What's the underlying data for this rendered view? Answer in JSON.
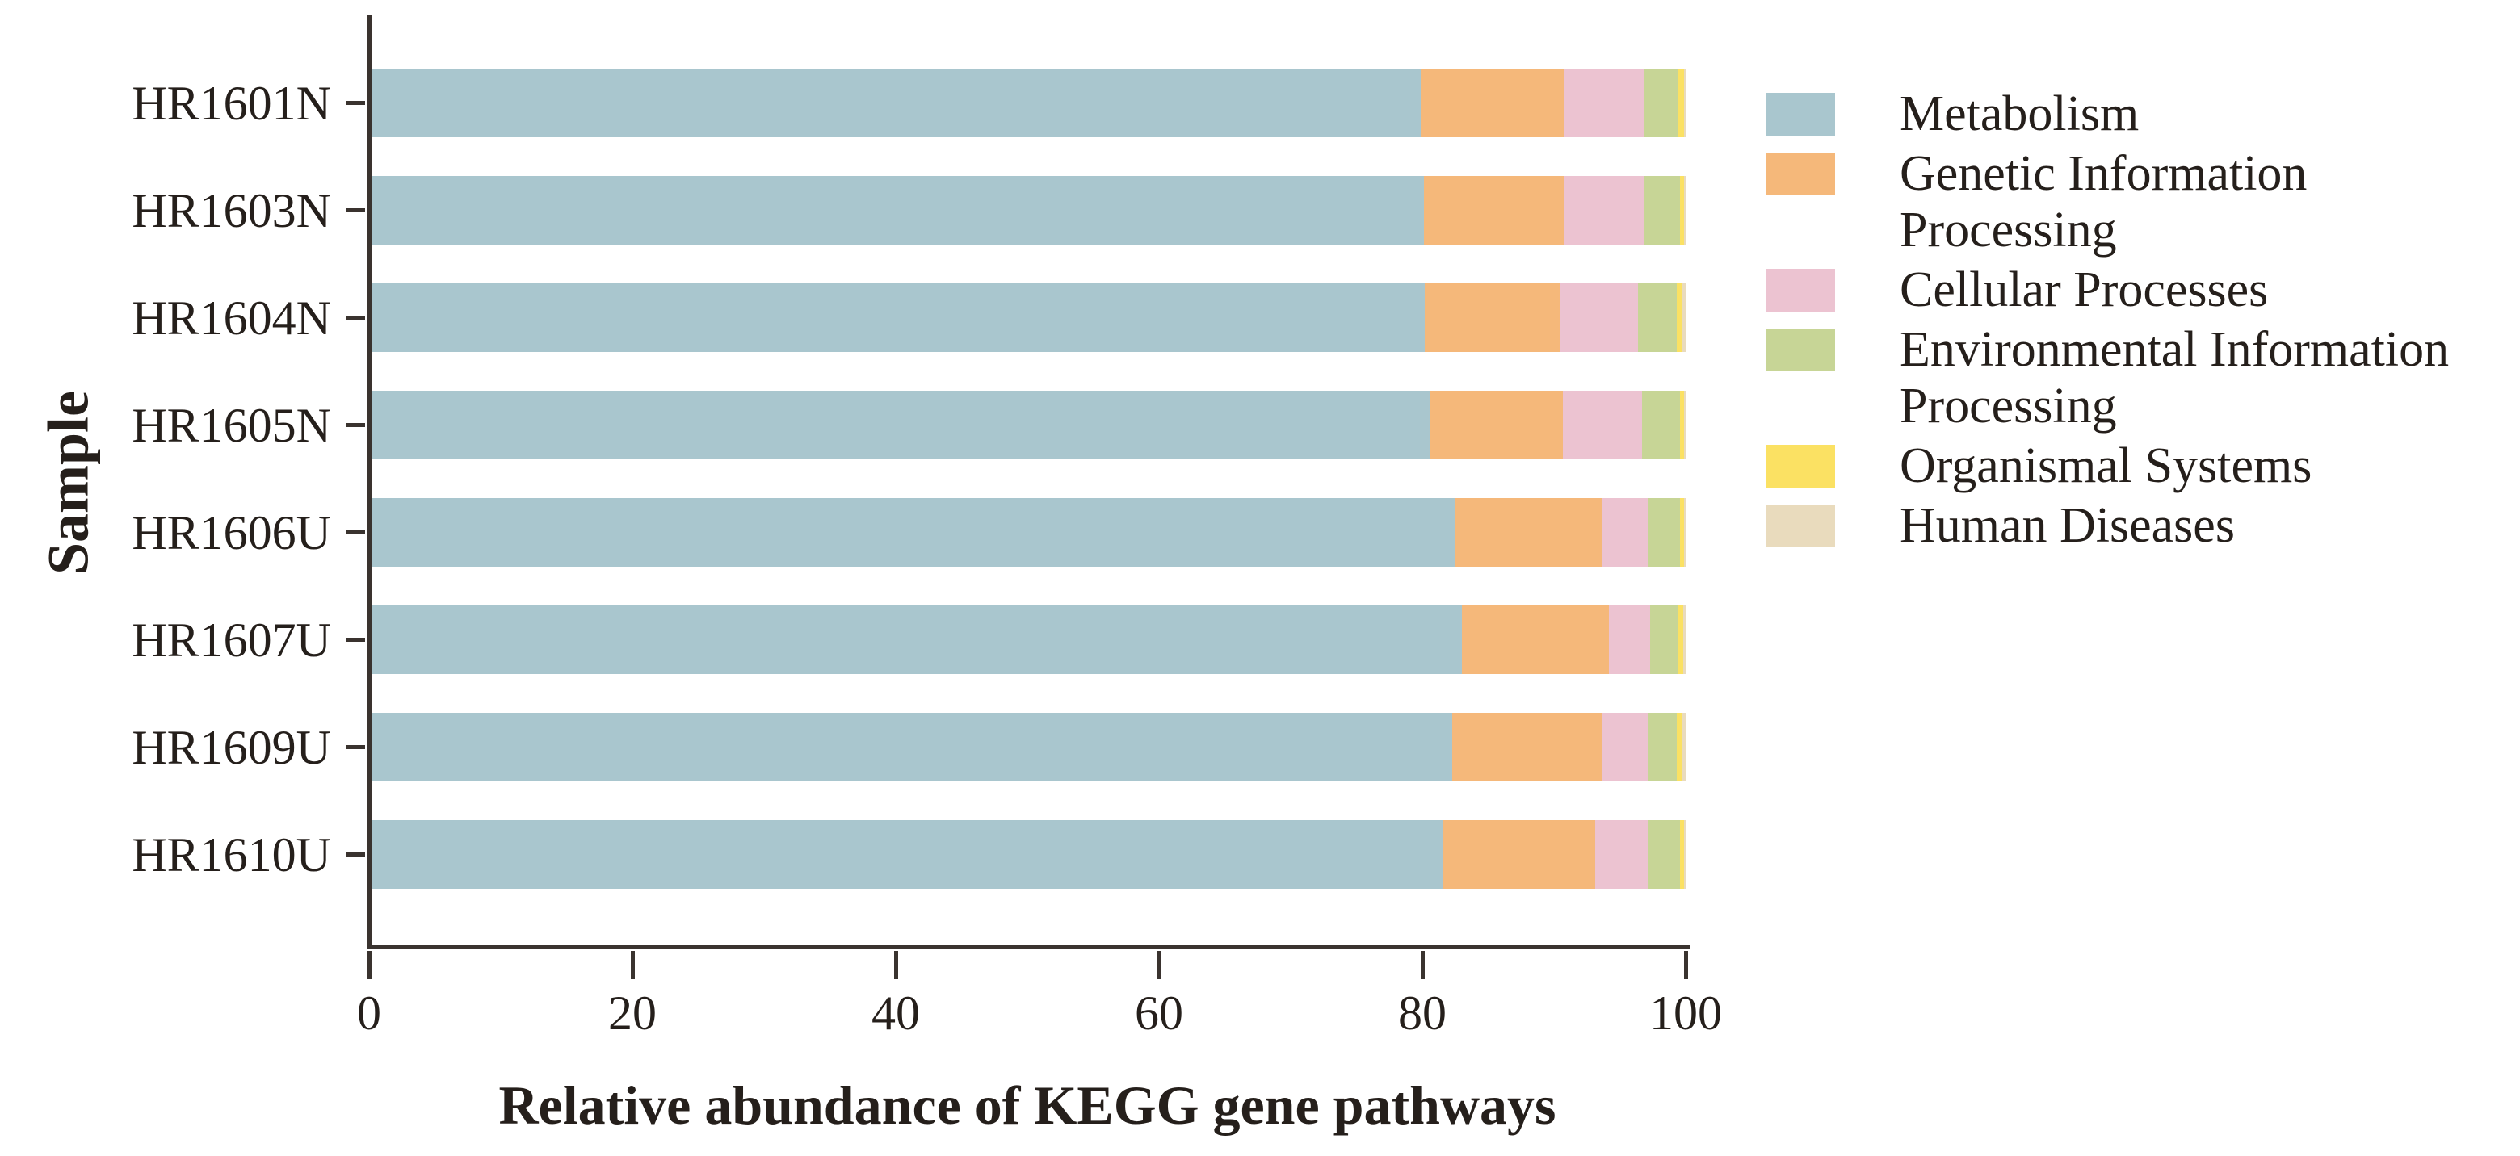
{
  "colors": {
    "background": "#ffffff",
    "axis": "#3a332f",
    "text": "#251f1b"
  },
  "chart_data": {
    "type": "bar",
    "orientation": "horizontal",
    "stacked": true,
    "xlabel": "Relative abundance of KEGG gene pathways",
    "ylabel": "Sample",
    "xlim": [
      0,
      100
    ],
    "xticks": [
      "0",
      "20",
      "40",
      "60",
      "80",
      "100"
    ],
    "grid": false,
    "legend_position": "right",
    "categories": [
      "HR1601N",
      "HR1603N",
      "HR1604N",
      "HR1605N",
      "HR1606U",
      "HR1607U",
      "HR1609U",
      "HR1610U"
    ],
    "series": [
      {
        "name": "Metabolism",
        "color": "#a9c6ce",
        "values": [
          79.9,
          80.1,
          80.2,
          80.6,
          82.5,
          83.0,
          82.3,
          81.6
        ]
      },
      {
        "name": "Genetic Information Processing",
        "color": "#f5b87a",
        "values": [
          10.9,
          10.7,
          10.2,
          10.1,
          11.1,
          11.2,
          11.3,
          11.5
        ]
      },
      {
        "name": "Cellular Processes",
        "color": "#ecc3d1",
        "values": [
          6.0,
          6.1,
          6.0,
          6.0,
          3.5,
          3.1,
          3.5,
          4.1
        ]
      },
      {
        "name": "Environmental Information Processing",
        "color": "#c7d596",
        "values": [
          2.6,
          2.7,
          2.9,
          2.9,
          2.5,
          2.1,
          2.2,
          2.4
        ]
      },
      {
        "name": "Organismal Systems",
        "color": "#fbe163",
        "values": [
          0.45,
          0.3,
          0.4,
          0.3,
          0.3,
          0.4,
          0.45,
          0.3
        ]
      },
      {
        "name": "Human Diseases",
        "color": "#e9dbbd",
        "values": [
          0.15,
          0.1,
          0.3,
          0.1,
          0.1,
          0.2,
          0.25,
          0.1
        ]
      }
    ],
    "legend_labels": [
      "Metabolism",
      "Genetic Information Processing",
      "Cellular Processes",
      "Environmental Information\nProcessing",
      "Organismal Systems",
      "Human Diseases"
    ]
  }
}
